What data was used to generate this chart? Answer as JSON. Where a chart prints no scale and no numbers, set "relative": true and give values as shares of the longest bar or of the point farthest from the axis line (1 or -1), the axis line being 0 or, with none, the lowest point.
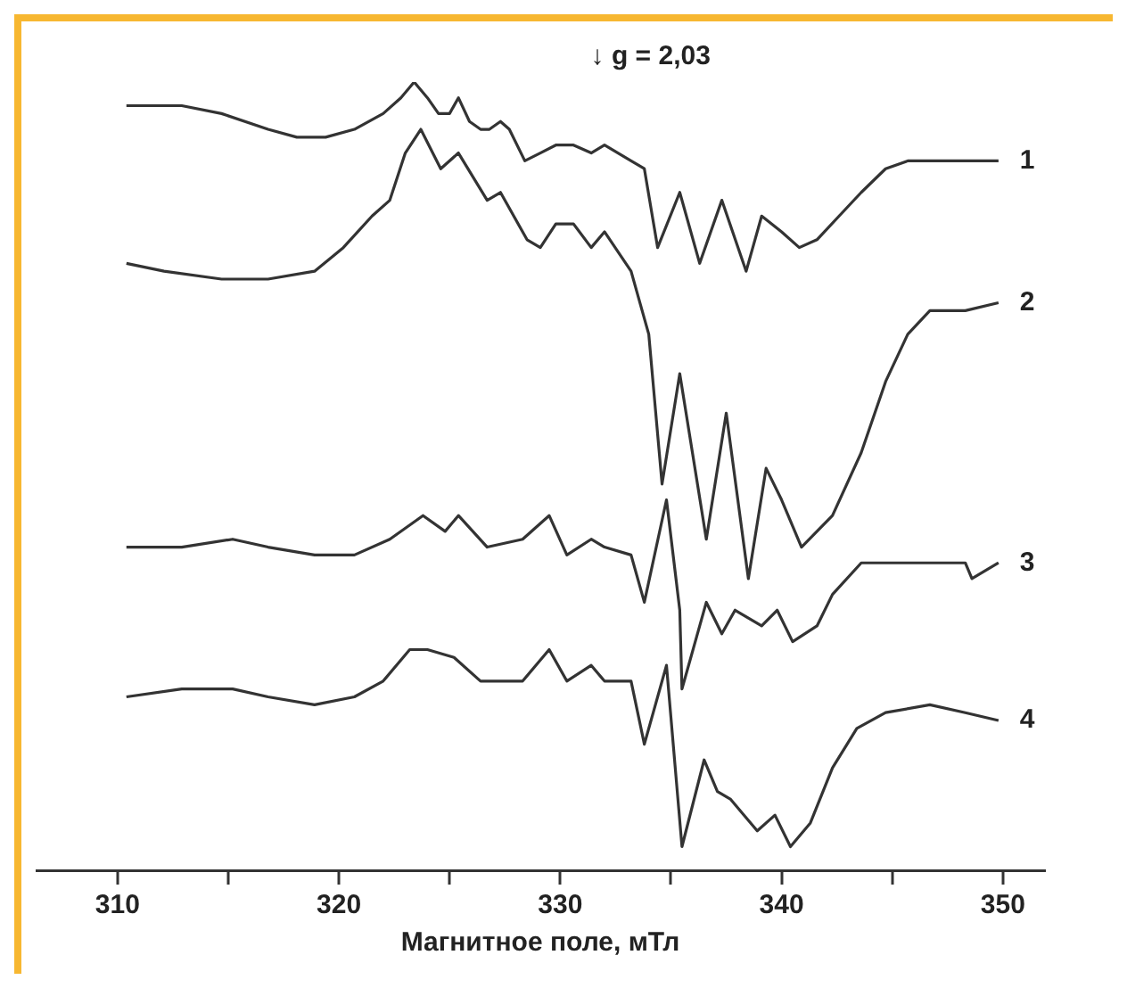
{
  "chart_data": {
    "type": "line",
    "relative": true,
    "xlabel": "Магнитное поле, мТл",
    "annotations": [
      "↓ g = 2,03"
    ],
    "xlim": [
      306.3,
      351.9
    ],
    "xticks": [
      310,
      {
        "value": 315,
        "label": null
      },
      320,
      {
        "value": 325,
        "label": null
      },
      330,
      {
        "value": 335,
        "label": null
      },
      340,
      {
        "value": 345,
        "label": null
      },
      350
    ],
    "series": [
      {
        "name": "1",
        "color": "#333333",
        "x": [
          310.4,
          312.9,
          314.7,
          316.8,
          318.1,
          319.4,
          320.7,
          322.0,
          322.8,
          323.4,
          324.0,
          324.5,
          325.0,
          325.4,
          325.9,
          326.4,
          326.8,
          327.3,
          327.7,
          328.4,
          329.1,
          329.8,
          330.6,
          331.4,
          332.0,
          333.2,
          333.8,
          334.4,
          335.4,
          336.3,
          337.3,
          338.4,
          339.1,
          340.0,
          340.8,
          341.6,
          342.6,
          343.6,
          344.7,
          345.7,
          347.3,
          349.8
        ],
        "values": [
          0.97,
          0.97,
          0.96,
          0.94,
          0.93,
          0.93,
          0.94,
          0.96,
          0.98,
          1.0,
          0.98,
          0.96,
          0.96,
          0.98,
          0.95,
          0.94,
          0.94,
          0.95,
          0.94,
          0.9,
          0.91,
          0.92,
          0.92,
          0.91,
          0.92,
          0.9,
          0.89,
          0.79,
          0.86,
          0.77,
          0.85,
          0.76,
          0.83,
          0.81,
          0.79,
          0.8,
          0.83,
          0.86,
          0.89,
          0.9,
          0.9,
          0.9
        ]
      },
      {
        "name": "2",
        "color": "#333333",
        "x": [
          310.4,
          312.1,
          314.7,
          316.8,
          318.9,
          320.2,
          321.5,
          322.3,
          323.0,
          323.7,
          324.6,
          325.4,
          326.7,
          327.3,
          328.5,
          329.1,
          329.8,
          330.6,
          331.4,
          332.0,
          333.2,
          334.0,
          334.6,
          335.4,
          336.6,
          337.5,
          338.5,
          339.3,
          340.0,
          340.9,
          342.3,
          343.6,
          344.7,
          345.7,
          346.7,
          348.3,
          349.8
        ],
        "values": [
          0.77,
          0.76,
          0.75,
          0.75,
          0.76,
          0.79,
          0.83,
          0.85,
          0.91,
          0.94,
          0.89,
          0.91,
          0.85,
          0.86,
          0.8,
          0.79,
          0.82,
          0.82,
          0.79,
          0.81,
          0.76,
          0.68,
          0.49,
          0.63,
          0.42,
          0.58,
          0.37,
          0.51,
          0.47,
          0.41,
          0.45,
          0.53,
          0.62,
          0.68,
          0.71,
          0.71,
          0.72
        ]
      },
      {
        "name": "3",
        "color": "#333333",
        "x": [
          310.4,
          312.9,
          315.2,
          316.8,
          318.9,
          320.7,
          322.3,
          323.8,
          324.8,
          325.4,
          326.7,
          328.3,
          329.5,
          330.3,
          331.4,
          332.0,
          333.2,
          333.8,
          334.8,
          335.4,
          335.5,
          336.6,
          337.3,
          337.9,
          339.1,
          339.8,
          340.5,
          341.6,
          342.3,
          343.6,
          345.7,
          348.3,
          348.6,
          349.8
        ],
        "values": [
          0.41,
          0.41,
          0.42,
          0.41,
          0.4,
          0.4,
          0.42,
          0.45,
          0.43,
          0.45,
          0.41,
          0.42,
          0.45,
          0.4,
          0.42,
          0.41,
          0.4,
          0.34,
          0.47,
          0.33,
          0.23,
          0.34,
          0.3,
          0.33,
          0.31,
          0.33,
          0.29,
          0.31,
          0.35,
          0.39,
          0.39,
          0.39,
          0.37,
          0.39
        ]
      },
      {
        "name": "4",
        "color": "#333333",
        "x": [
          310.4,
          312.9,
          315.2,
          316.8,
          318.9,
          320.7,
          322.0,
          323.2,
          324.0,
          325.2,
          326.4,
          328.3,
          329.5,
          330.3,
          331.4,
          332.0,
          333.2,
          333.8,
          334.8,
          335.5,
          336.5,
          337.1,
          337.7,
          338.9,
          339.7,
          340.4,
          341.3,
          342.3,
          343.4,
          344.7,
          346.7,
          348.3,
          349.8
        ],
        "values": [
          0.22,
          0.23,
          0.23,
          0.22,
          0.21,
          0.22,
          0.24,
          0.28,
          0.28,
          0.27,
          0.24,
          0.24,
          0.28,
          0.24,
          0.26,
          0.24,
          0.24,
          0.16,
          0.26,
          0.03,
          0.14,
          0.1,
          0.09,
          0.05,
          0.07,
          0.03,
          0.06,
          0.13,
          0.18,
          0.2,
          0.21,
          0.2,
          0.19
        ]
      }
    ]
  }
}
